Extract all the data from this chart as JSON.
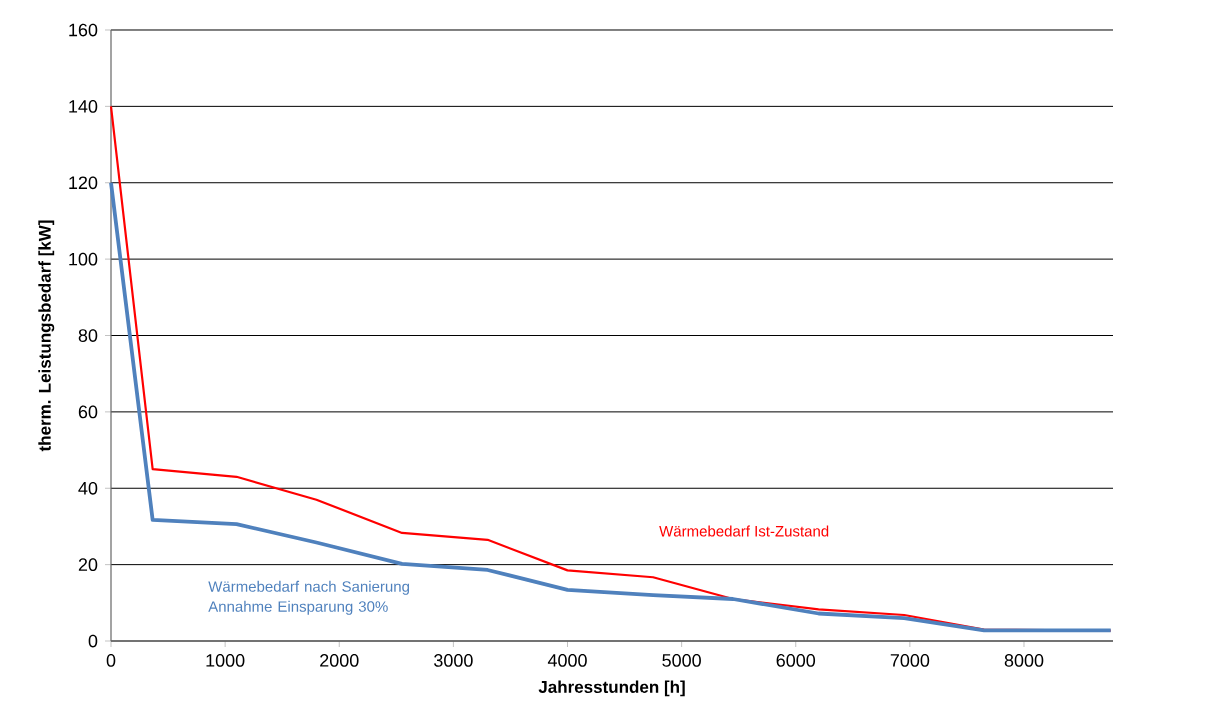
{
  "chart_data": {
    "type": "line",
    "xlabel": "Jahresstunden [h]",
    "ylabel": "therm. Leistungsbedarf [kW]",
    "xlim": [
      0,
      8780
    ],
    "xticks": [
      0,
      1000,
      2000,
      3000,
      4000,
      5000,
      6000,
      7000,
      8000
    ],
    "ylim": [
      0,
      160
    ],
    "yticks": [
      0,
      20,
      40,
      60,
      80,
      100,
      120,
      140,
      160
    ],
    "grid": "y",
    "series": [
      {
        "name": "Wärmebedarf Ist-Zustand",
        "color": "#ff0000",
        "x": [
          0,
          365,
          1100,
          1800,
          2550,
          3300,
          4000,
          4750,
          5450,
          6200,
          6950,
          7650,
          8760
        ],
        "values": [
          140,
          45,
          43,
          37,
          28.3,
          26.5,
          18.5,
          16.7,
          11,
          8.3,
          6.8,
          3,
          2.7
        ]
      },
      {
        "name": "Wärmebedarf nach Sanierung Annahme Einsparung 30%",
        "color": "#4f81bd",
        "x": [
          0,
          365,
          1100,
          1800,
          2550,
          3300,
          4000,
          4750,
          5450,
          6200,
          6950,
          7650,
          8760
        ],
        "values": [
          120,
          31.7,
          30.6,
          25.8,
          20.2,
          18.6,
          13.4,
          12,
          11,
          7.2,
          6,
          2.8,
          2.8
        ]
      }
    ]
  }
}
